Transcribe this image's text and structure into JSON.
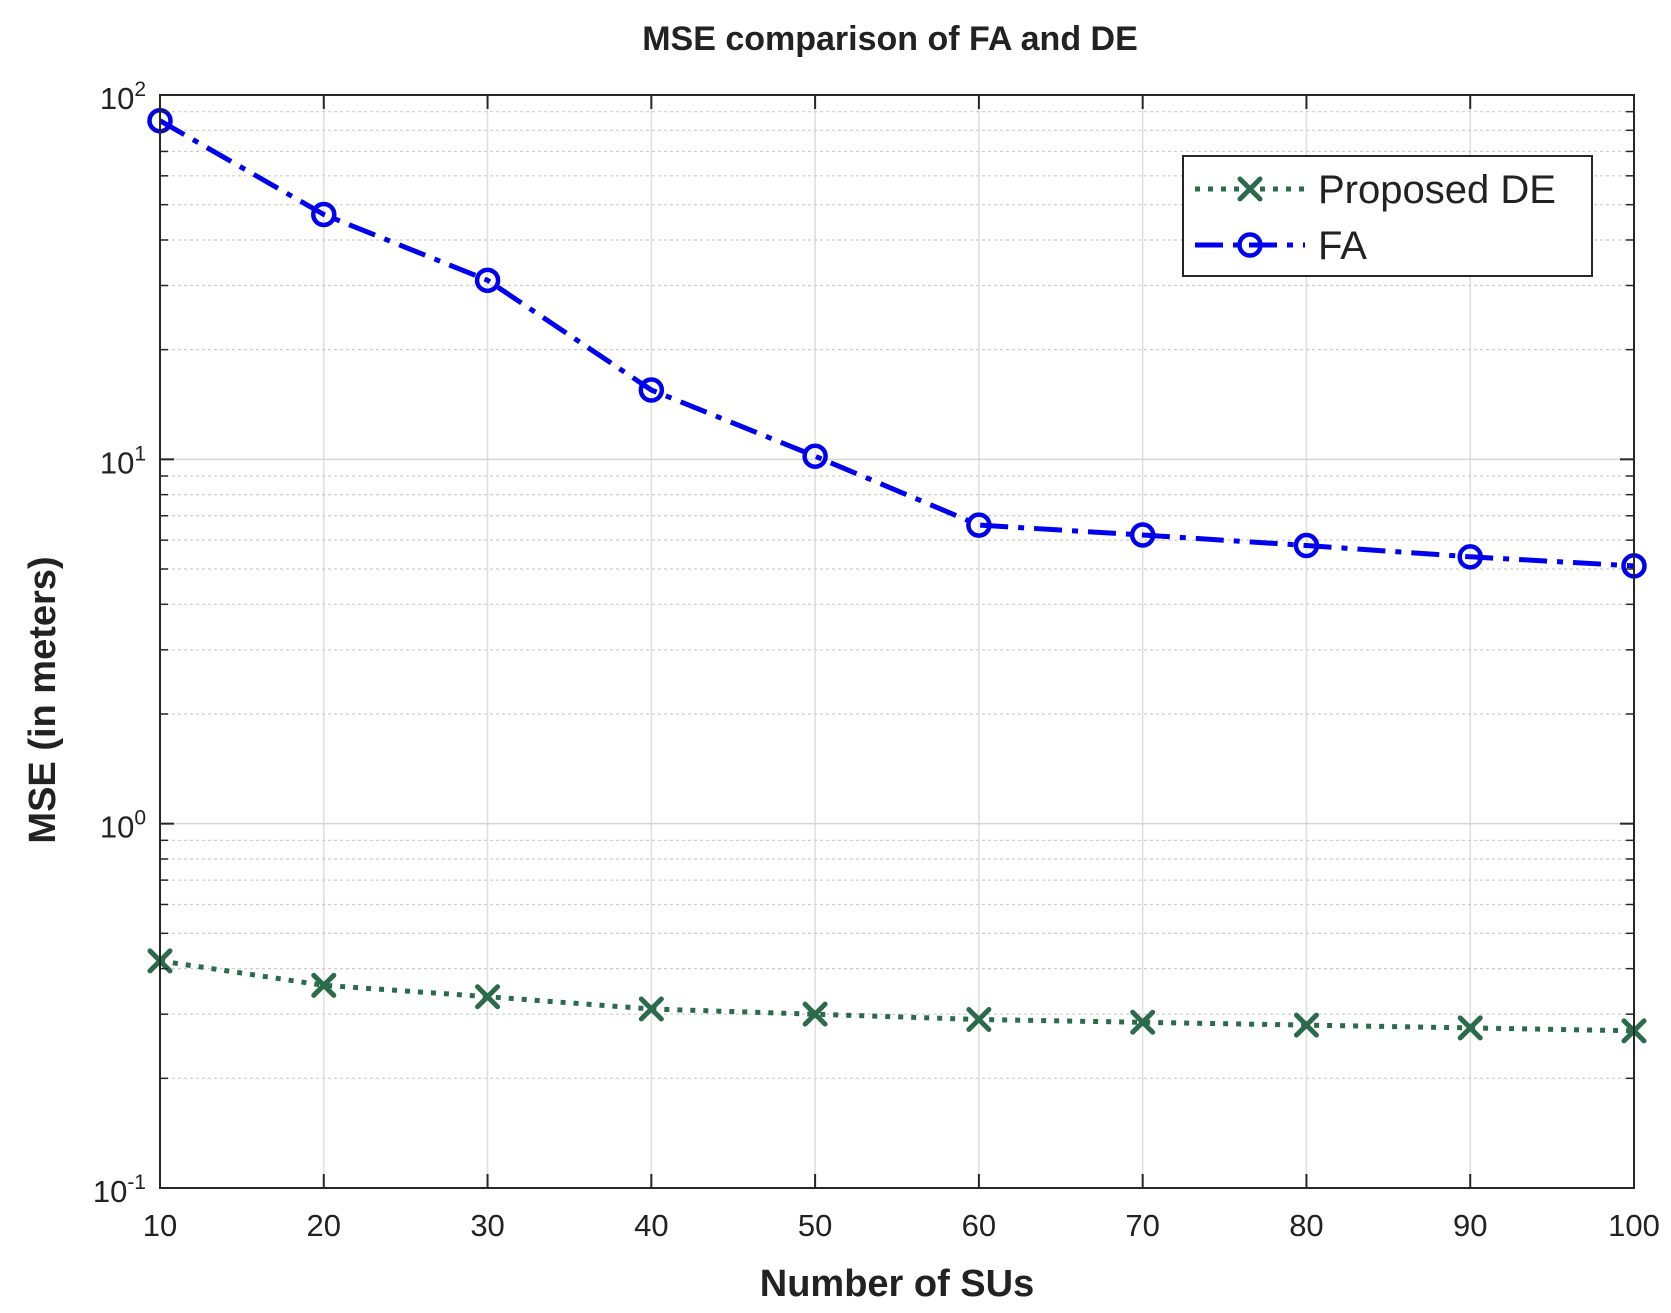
{
  "chart_data": {
    "type": "line",
    "title": "MSE comparison of FA and DE",
    "xlabel": "Number of SUs",
    "ylabel": "MSE (in meters)",
    "yscale": "log",
    "xlim": [
      10,
      100
    ],
    "ylim": [
      0.1,
      100
    ],
    "x": [
      10,
      20,
      30,
      40,
      50,
      60,
      70,
      80,
      90,
      100
    ],
    "xticks": [
      "10",
      "20",
      "30",
      "40",
      "50",
      "60",
      "70",
      "80",
      "90",
      "100"
    ],
    "yticks": [
      {
        "base": "10",
        "exp": "-1"
      },
      {
        "base": "10",
        "exp": "0"
      },
      {
        "base": "10",
        "exp": "1"
      },
      {
        "base": "10",
        "exp": "2"
      }
    ],
    "grid": true,
    "legend_position": "top-right",
    "series": [
      {
        "name": "Proposed DE",
        "color": "#2b6a4a",
        "marker": "x",
        "linestyle": "dotted",
        "values": [
          0.42,
          0.36,
          0.335,
          0.31,
          0.3,
          0.29,
          0.285,
          0.28,
          0.275,
          0.27
        ]
      },
      {
        "name": "FA",
        "color": "#0000ee",
        "marker": "o",
        "linestyle": "dashdot",
        "values": [
          85,
          47,
          31,
          15.5,
          10.2,
          6.6,
          6.2,
          5.8,
          5.4,
          5.1
        ]
      }
    ]
  }
}
